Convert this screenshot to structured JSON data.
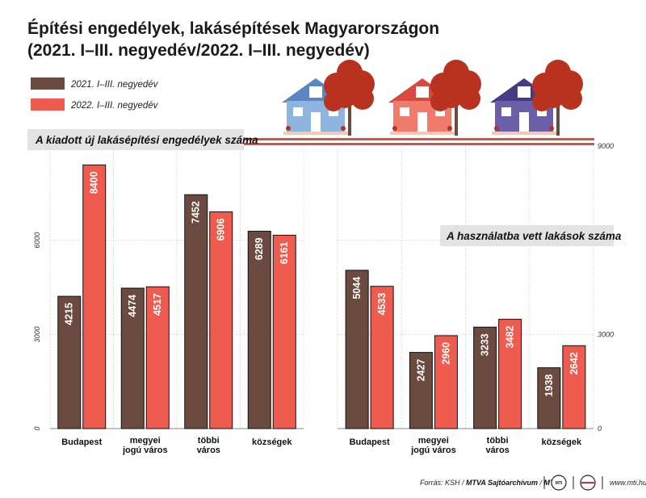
{
  "title": {
    "line1": "Építési engedélyek, lakásépítések Magyarországon",
    "line2": "(2021. I–III. negyedév/2022. I–III. negyedév)"
  },
  "legend": [
    {
      "label": "2021. I–III. negyedév",
      "color": "#6b4a3f"
    },
    {
      "label": "2022. I–III. negyedév",
      "color": "#ef5b4f"
    }
  ],
  "colors": {
    "series_2021": "#6b4a3f",
    "series_2022": "#ef5b4f",
    "grid": "#c8c8c8",
    "panel_title_bg": "#e3e3e3",
    "stripe": "#c6584a"
  },
  "chart_data": [
    {
      "type": "bar",
      "title": "A kiadott új lakásépítési engedélyek száma",
      "categories": [
        [
          "Budapest"
        ],
        [
          "megyei",
          "jogú város"
        ],
        [
          "többi",
          "város"
        ],
        [
          "községek"
        ]
      ],
      "series": [
        {
          "name": "2021. I–III. negyedév",
          "values": [
            4215,
            4474,
            7452,
            6289
          ]
        },
        {
          "name": "2022. I–III. negyedév",
          "values": [
            8400,
            4517,
            6906,
            6161
          ]
        }
      ],
      "ylim": [
        0,
        9000
      ],
      "yticks": [
        0,
        3000,
        6000
      ],
      "grid": true
    },
    {
      "type": "bar",
      "title": "A használatba vett lakások száma",
      "categories": [
        [
          "Budapest"
        ],
        [
          "megyei",
          "jogú város"
        ],
        [
          "többi",
          "város"
        ],
        [
          "községek"
        ]
      ],
      "series": [
        {
          "name": "2021. I–III. negyedév",
          "values": [
            5044,
            2427,
            3233,
            1938
          ]
        },
        {
          "name": "2022. I–III. negyedév",
          "values": [
            4533,
            2960,
            3482,
            2642
          ]
        }
      ],
      "ylim": [
        0,
        9000
      ],
      "yticks": [
        0,
        3000,
        9000
      ],
      "grid": true
    }
  ],
  "houses": [
    {
      "icon": "house-icon",
      "wall": "#8fb4df",
      "roof": "#5b86c4"
    },
    {
      "icon": "house-icon",
      "wall": "#f07a6c",
      "roof": "#d9493d"
    },
    {
      "icon": "house-icon",
      "wall": "#6a5fa8",
      "roof": "#463b87"
    }
  ],
  "tree": {
    "icon": "tree-icon",
    "crown": "#b8321f",
    "trunk": "#6b4a3f"
  },
  "footer": {
    "source_prefix": "Forrás: KSH / ",
    "source_bold": "MTVA Sajtóarchívum",
    "source_sep": " / ",
    "source_mti": "MTI",
    "logo1": "MTI",
    "logo2_icon": "mti-logo-icon",
    "url": "www.mti.hu"
  }
}
